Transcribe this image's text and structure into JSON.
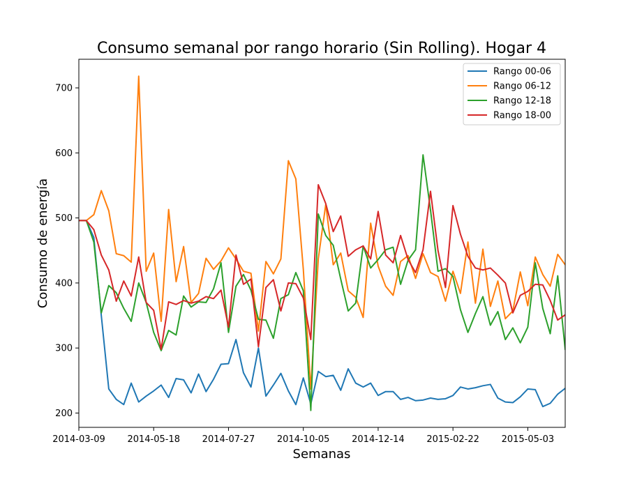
{
  "chart_data": {
    "type": "line",
    "title": "Consumo semanal por rango horario (Sin Rolling). Hogar 4",
    "xlabel": "Semanas",
    "ylabel": "Consumo de energía",
    "x_start": "2014-03-09",
    "x_step_days": 7,
    "x_ticks": [
      "2014-03-09",
      "2014-05-18",
      "2014-07-27",
      "2014-10-05",
      "2014-12-14",
      "2015-02-22",
      "2015-05-03"
    ],
    "xlim": [
      "2014-03-09",
      "2015-06-07"
    ],
    "ylim": [
      178,
      744
    ],
    "y_ticks": [
      200,
      300,
      400,
      500,
      600,
      700
    ],
    "grid": false,
    "legend_position": "upper right",
    "series": [
      {
        "name": "Rango 00-06",
        "color": "#1f77b4",
        "values": [
          496,
          496,
          470,
          350,
          237,
          221,
          213,
          246,
          217,
          226,
          234,
          243,
          224,
          253,
          251,
          231,
          260,
          233,
          252,
          275,
          276,
          313,
          262,
          240,
          300,
          226,
          243,
          261,
          234,
          213,
          254,
          214,
          264,
          256,
          258,
          235,
          268,
          246,
          240,
          246,
          227,
          233,
          233,
          221,
          224,
          219,
          220,
          223,
          221,
          222,
          227,
          240,
          237,
          239,
          242,
          244,
          223,
          217,
          216,
          225,
          237,
          236,
          210,
          215,
          229,
          238
        ]
      },
      {
        "name": "Rango 06-12",
        "color": "#ff7f0e",
        "values": [
          496,
          496,
          505,
          542,
          511,
          445,
          442,
          432,
          718,
          418,
          446,
          341,
          513,
          402,
          456,
          370,
          384,
          438,
          421,
          434,
          454,
          437,
          418,
          415,
          326,
          433,
          414,
          437,
          588,
          560,
          421,
          237,
          437,
          521,
          428,
          446,
          388,
          378,
          347,
          492,
          426,
          395,
          381,
          433,
          442,
          407,
          445,
          416,
          410,
          372,
          418,
          384,
          463,
          369,
          452,
          364,
          403,
          345,
          357,
          417,
          365,
          440,
          413,
          395,
          444,
          428
        ]
      },
      {
        "name": "Rango 12-18",
        "color": "#2ca02c",
        "values": [
          496,
          496,
          463,
          354,
          396,
          385,
          361,
          341,
          400,
          370,
          324,
          296,
          327,
          320,
          380,
          363,
          371,
          370,
          391,
          431,
          324,
          395,
          413,
          389,
          344,
          343,
          315,
          376,
          382,
          416,
          388,
          204,
          506,
          473,
          458,
          406,
          357,
          369,
          457,
          423,
          436,
          451,
          455,
          398,
          435,
          451,
          597,
          512,
          418,
          422,
          410,
          359,
          324,
          353,
          379,
          335,
          356,
          313,
          331,
          308,
          332,
          431,
          361,
          322,
          411,
          298
        ]
      },
      {
        "name": "Rango 18-00",
        "color": "#d62728",
        "values": [
          496,
          496,
          482,
          443,
          420,
          372,
          403,
          380,
          440,
          370,
          358,
          298,
          371,
          367,
          373,
          369,
          372,
          379,
          376,
          389,
          332,
          443,
          398,
          406,
          302,
          393,
          405,
          357,
          400,
          399,
          377,
          313,
          551,
          522,
          479,
          503,
          441,
          451,
          457,
          437,
          510,
          443,
          431,
          473,
          436,
          416,
          451,
          541,
          450,
          393,
          519,
          475,
          441,
          423,
          420,
          423,
          412,
          400,
          354,
          381,
          387,
          398,
          397,
          373,
          343,
          351
        ]
      }
    ]
  }
}
